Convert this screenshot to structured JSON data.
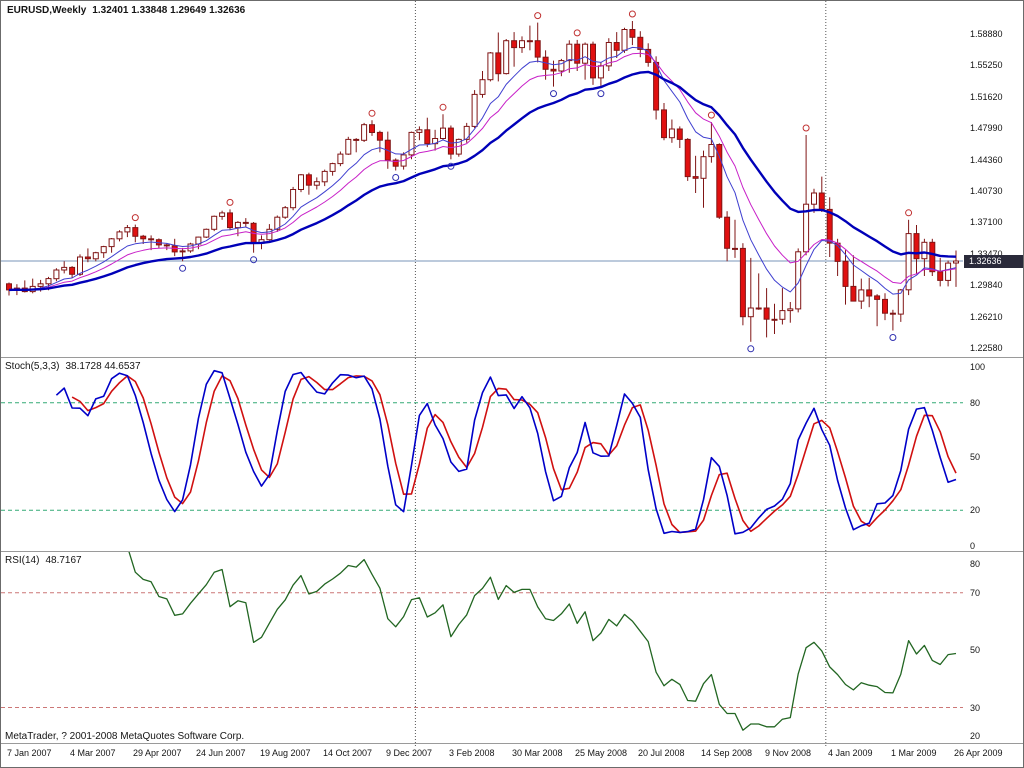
{
  "header": {
    "symbol_timeframe": "EURUSD,Weekly",
    "ohlc_text": "1.32401 1.33848 1.29649 1.32636"
  },
  "footer": {
    "copyright": "MetaTrader, ? 2001-2008 MetaQuotes Software Corp."
  },
  "chart_data": {
    "type": "candlestick",
    "symbol": "EURUSD",
    "timeframe": "Weekly",
    "bars_count": 121,
    "current_bar": {
      "open": 1.32401,
      "high": 1.33848,
      "low": 1.29649,
      "close": 1.32636
    },
    "current_price": 1.32636,
    "current_price_text": "1.32636",
    "price_axis_ticks": [
      "1.58880",
      "1.55250",
      "1.51620",
      "1.47990",
      "1.44360",
      "1.40730",
      "1.37100",
      "1.33470",
      "1.29840",
      "1.26210",
      "1.22580"
    ],
    "date_axis_labels": [
      "7 Jan 2007",
      "4 Mar 2007",
      "29 Apr 2007",
      "24 Jun 2007",
      "19 Aug 2007",
      "14 Oct 2007",
      "9 Dec 2007",
      "3 Feb 2008",
      "30 Mar 2008",
      "25 May 2008",
      "20 Jul 2008",
      "14 Sep 2008",
      "9 Nov 2008",
      "4 Jan 2009",
      "1 Mar 2009",
      "26 Apr 2009"
    ],
    "year_separators_at_candle_index": [
      52,
      104
    ],
    "candles_ohlc": [
      [
        1.3,
        1.3015,
        1.2865,
        1.293
      ],
      [
        1.293,
        1.2995,
        1.287,
        1.295
      ],
      [
        1.295,
        1.304,
        1.29,
        1.291
      ],
      [
        1.291,
        1.306,
        1.289,
        1.297
      ],
      [
        1.297,
        1.3045,
        1.291,
        1.3
      ],
      [
        1.3,
        1.308,
        1.2925,
        1.306
      ],
      [
        1.306,
        1.318,
        1.303,
        1.316
      ],
      [
        1.316,
        1.326,
        1.312,
        1.319
      ],
      [
        1.319,
        1.3205,
        1.307,
        1.311
      ],
      [
        1.311,
        1.334,
        1.309,
        1.331
      ],
      [
        1.331,
        1.341,
        1.325,
        1.329
      ],
      [
        1.329,
        1.337,
        1.326,
        1.336
      ],
      [
        1.336,
        1.344,
        1.33,
        1.343
      ],
      [
        1.343,
        1.353,
        1.336,
        1.352
      ],
      [
        1.352,
        1.362,
        1.349,
        1.36
      ],
      [
        1.36,
        1.368,
        1.354,
        1.365
      ],
      [
        1.365,
        1.3685,
        1.348,
        1.355
      ],
      [
        1.355,
        1.3565,
        1.346,
        1.352
      ],
      [
        1.352,
        1.356,
        1.339,
        1.351
      ],
      [
        1.351,
        1.3525,
        1.341,
        1.345
      ],
      [
        1.345,
        1.3465,
        1.339,
        1.344
      ],
      [
        1.344,
        1.352,
        1.332,
        1.337
      ],
      [
        1.337,
        1.3415,
        1.326,
        1.338
      ],
      [
        1.338,
        1.3475,
        1.336,
        1.346
      ],
      [
        1.346,
        1.3545,
        1.34,
        1.354
      ],
      [
        1.354,
        1.364,
        1.353,
        1.363
      ],
      [
        1.363,
        1.379,
        1.361,
        1.378
      ],
      [
        1.378,
        1.3845,
        1.374,
        1.382
      ],
      [
        1.382,
        1.386,
        1.362,
        1.365
      ],
      [
        1.365,
        1.3725,
        1.355,
        1.371
      ],
      [
        1.371,
        1.376,
        1.366,
        1.37
      ],
      [
        1.37,
        1.3715,
        1.336,
        1.347
      ],
      [
        1.347,
        1.356,
        1.34,
        1.351
      ],
      [
        1.351,
        1.369,
        1.35,
        1.363
      ],
      [
        1.363,
        1.379,
        1.36,
        1.377
      ],
      [
        1.377,
        1.39,
        1.375,
        1.388
      ],
      [
        1.388,
        1.412,
        1.385,
        1.409
      ],
      [
        1.409,
        1.427,
        1.406,
        1.426
      ],
      [
        1.426,
        1.4285,
        1.403,
        1.414
      ],
      [
        1.414,
        1.423,
        1.409,
        1.418
      ],
      [
        1.418,
        1.432,
        1.413,
        1.43
      ],
      [
        1.43,
        1.44,
        1.425,
        1.439
      ],
      [
        1.439,
        1.453,
        1.436,
        1.45
      ],
      [
        1.45,
        1.47,
        1.449,
        1.467
      ],
      [
        1.467,
        1.4685,
        1.452,
        1.466
      ],
      [
        1.466,
        1.486,
        1.464,
        1.484
      ],
      [
        1.484,
        1.489,
        1.471,
        1.475
      ],
      [
        1.475,
        1.477,
        1.452,
        1.466
      ],
      [
        1.466,
        1.476,
        1.433,
        1.443
      ],
      [
        1.443,
        1.445,
        1.431,
        1.436
      ],
      [
        1.436,
        1.452,
        1.432,
        1.449
      ],
      [
        1.449,
        1.476,
        1.444,
        1.475
      ],
      [
        1.475,
        1.482,
        1.466,
        1.478
      ],
      [
        1.478,
        1.492,
        1.458,
        1.462
      ],
      [
        1.462,
        1.478,
        1.454,
        1.468
      ],
      [
        1.468,
        1.496,
        1.466,
        1.48
      ],
      [
        1.48,
        1.483,
        1.444,
        1.45
      ],
      [
        1.45,
        1.468,
        1.447,
        1.467
      ],
      [
        1.467,
        1.486,
        1.463,
        1.482
      ],
      [
        1.482,
        1.524,
        1.48,
        1.519
      ],
      [
        1.519,
        1.546,
        1.515,
        1.536
      ],
      [
        1.536,
        1.568,
        1.534,
        1.567
      ],
      [
        1.567,
        1.5905,
        1.534,
        1.543
      ],
      [
        1.543,
        1.583,
        1.542,
        1.581
      ],
      [
        1.581,
        1.591,
        1.551,
        1.573
      ],
      [
        1.573,
        1.586,
        1.567,
        1.581
      ],
      [
        1.581,
        1.5985,
        1.57,
        1.581
      ],
      [
        1.581,
        1.602,
        1.556,
        1.562
      ],
      [
        1.562,
        1.57,
        1.536,
        1.548
      ],
      [
        1.548,
        1.558,
        1.528,
        1.546
      ],
      [
        1.546,
        1.56,
        1.54,
        1.558
      ],
      [
        1.558,
        1.5815,
        1.544,
        1.577
      ],
      [
        1.577,
        1.582,
        1.546,
        1.555
      ],
      [
        1.555,
        1.579,
        1.536,
        1.577
      ],
      [
        1.577,
        1.58,
        1.53,
        1.538
      ],
      [
        1.538,
        1.556,
        1.528,
        1.552
      ],
      [
        1.552,
        1.584,
        1.546,
        1.579
      ],
      [
        1.579,
        1.591,
        1.561,
        1.57
      ],
      [
        1.57,
        1.596,
        1.567,
        1.594
      ],
      [
        1.594,
        1.6038,
        1.576,
        1.585
      ],
      [
        1.585,
        1.592,
        1.562,
        1.571
      ],
      [
        1.571,
        1.578,
        1.551,
        1.556
      ],
      [
        1.556,
        1.563,
        1.49,
        1.501
      ],
      [
        1.501,
        1.509,
        1.466,
        1.469
      ],
      [
        1.469,
        1.49,
        1.463,
        1.479
      ],
      [
        1.479,
        1.482,
        1.457,
        1.467
      ],
      [
        1.467,
        1.4685,
        1.419,
        1.424
      ],
      [
        1.424,
        1.448,
        1.405,
        1.422
      ],
      [
        1.422,
        1.454,
        1.388,
        1.447
      ],
      [
        1.447,
        1.487,
        1.44,
        1.461
      ],
      [
        1.461,
        1.4625,
        1.375,
        1.377
      ],
      [
        1.377,
        1.384,
        1.326,
        1.341
      ],
      [
        1.341,
        1.374,
        1.33,
        1.341
      ],
      [
        1.341,
        1.347,
        1.252,
        1.262
      ],
      [
        1.262,
        1.33,
        1.233,
        1.272
      ],
      [
        1.272,
        1.312,
        1.27,
        1.272
      ],
      [
        1.272,
        1.295,
        1.238,
        1.259
      ],
      [
        1.259,
        1.277,
        1.242,
        1.259
      ],
      [
        1.259,
        1.295,
        1.253,
        1.269
      ],
      [
        1.269,
        1.279,
        1.255,
        1.271
      ],
      [
        1.271,
        1.341,
        1.267,
        1.337
      ],
      [
        1.337,
        1.472,
        1.333,
        1.392
      ],
      [
        1.392,
        1.41,
        1.382,
        1.405
      ],
      [
        1.405,
        1.424,
        1.383,
        1.386
      ],
      [
        1.386,
        1.4,
        1.331,
        1.347
      ],
      [
        1.347,
        1.352,
        1.309,
        1.326
      ],
      [
        1.326,
        1.339,
        1.276,
        1.297
      ],
      [
        1.297,
        1.333,
        1.286,
        1.28
      ],
      [
        1.28,
        1.306,
        1.271,
        1.293
      ],
      [
        1.293,
        1.307,
        1.273,
        1.286
      ],
      [
        1.286,
        1.288,
        1.251,
        1.282
      ],
      [
        1.282,
        1.289,
        1.258,
        1.266
      ],
      [
        1.266,
        1.27,
        1.246,
        1.265
      ],
      [
        1.265,
        1.294,
        1.256,
        1.293
      ],
      [
        1.293,
        1.374,
        1.287,
        1.358
      ],
      [
        1.358,
        1.368,
        1.311,
        1.329
      ],
      [
        1.329,
        1.352,
        1.309,
        1.348
      ],
      [
        1.348,
        1.352,
        1.309,
        1.314
      ],
      [
        1.314,
        1.33,
        1.297,
        1.304
      ],
      [
        1.304,
        1.327,
        1.297,
        1.324
      ],
      [
        1.32401,
        1.33848,
        1.29649,
        1.32636
      ]
    ],
    "moving_averages": [
      {
        "name": "ma-fast-line",
        "period": 8,
        "method": "ema",
        "color": "#4040d0",
        "width": 1
      },
      {
        "name": "ma-medium-line",
        "period": 13,
        "method": "ema",
        "color": "#c820c8",
        "width": 1
      },
      {
        "name": "ma-slow-line",
        "period": 26,
        "method": "ema",
        "color": "#0000b8",
        "width": 2.4
      }
    ],
    "fractals": {
      "up_color": "#c03030",
      "down_color": "#3030b0"
    },
    "panels": [
      {
        "name": "stochastic",
        "label": "Stoch(5,3,3)",
        "values_text": "38.1728 44.6537",
        "main_value": 38.1728,
        "signal_value": 44.6537,
        "params": {
          "k": 5,
          "d": 3,
          "slowing": 3
        },
        "axis_ticks": [
          100,
          80,
          50,
          20,
          0
        ],
        "levels": [
          80,
          20
        ],
        "main_color": "#0000c8",
        "signal_color": "#d01010"
      },
      {
        "name": "rsi",
        "label": "RSI(14)",
        "value_text": "48.7167",
        "value": 48.7167,
        "period": 14,
        "axis_ticks": [
          80,
          70,
          50,
          30,
          20
        ],
        "levels": [
          70,
          30
        ],
        "color": "#226622"
      }
    ],
    "colors": {
      "background": "#ffffff",
      "bull_body": "#ffffff",
      "bear_body": "#e01010",
      "candle_line": "#801515",
      "current_price_line": "#7996b8",
      "price_tag_bg": "#2a2a3a",
      "stoch_level": "#33aa77",
      "rsi_level": "#cc7777",
      "year_separator": "#555555",
      "panel_separator": "#9a9a9a"
    }
  }
}
